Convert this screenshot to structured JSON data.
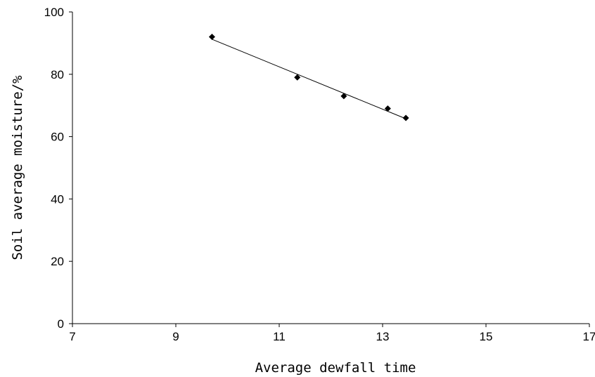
{
  "chart_data": {
    "type": "scatter",
    "title": "",
    "xlabel": "Average dewfall time",
    "ylabel": "Soil average moisture/%",
    "xlim": [
      7,
      17
    ],
    "ylim": [
      0,
      100
    ],
    "x_ticks": [
      7,
      9,
      11,
      13,
      15,
      17
    ],
    "y_ticks": [
      0,
      20,
      40,
      60,
      80,
      100
    ],
    "grid": false,
    "legend": "none",
    "series": [
      {
        "points": [
          {
            "x": 9.7,
            "y": 92
          },
          {
            "x": 11.35,
            "y": 79
          },
          {
            "x": 12.25,
            "y": 73
          },
          {
            "x": 13.1,
            "y": 69
          },
          {
            "x": 13.45,
            "y": 66
          }
        ]
      }
    ],
    "trendline": {
      "type": "linear",
      "x_start": 9.7,
      "x_end": 13.45
    },
    "marker": "diamond",
    "color": "#000000"
  }
}
